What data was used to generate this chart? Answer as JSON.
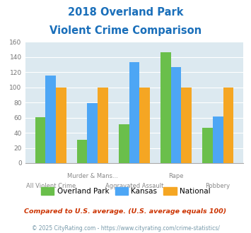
{
  "title_line1": "2018 Overland Park",
  "title_line2": "Violent Crime Comparison",
  "title_color": "#1a6fba",
  "categories": [
    "All Violent Crime",
    "Murder & Mans...",
    "Aggravated Assault",
    "Rape",
    "Robbery"
  ],
  "label_top": [
    "",
    "Murder & Mans...",
    "",
    "Rape",
    ""
  ],
  "label_bottom": [
    "All Violent Crime",
    "",
    "Aggravated Assault",
    "",
    "Robbery"
  ],
  "overland_park": [
    61,
    31,
    51,
    146,
    47
  ],
  "kansas": [
    116,
    79,
    133,
    127,
    62
  ],
  "national": [
    100,
    100,
    100,
    100,
    100
  ],
  "op_color": "#6abf4b",
  "ks_color": "#4da6f5",
  "nat_color": "#f5a623",
  "ylim": [
    0,
    160
  ],
  "yticks": [
    0,
    20,
    40,
    60,
    80,
    100,
    120,
    140,
    160
  ],
  "plot_bg": "#dce9f0",
  "legend_labels": [
    "Overland Park",
    "Kansas",
    "National"
  ],
  "footnote1": "Compared to U.S. average. (U.S. average equals 100)",
  "footnote2": "© 2025 CityRating.com - https://www.cityrating.com/crime-statistics/",
  "footnote1_color": "#cc3300",
  "footnote2_color": "#7799aa",
  "title_fontsize": 10.5,
  "bar_width": 0.25
}
